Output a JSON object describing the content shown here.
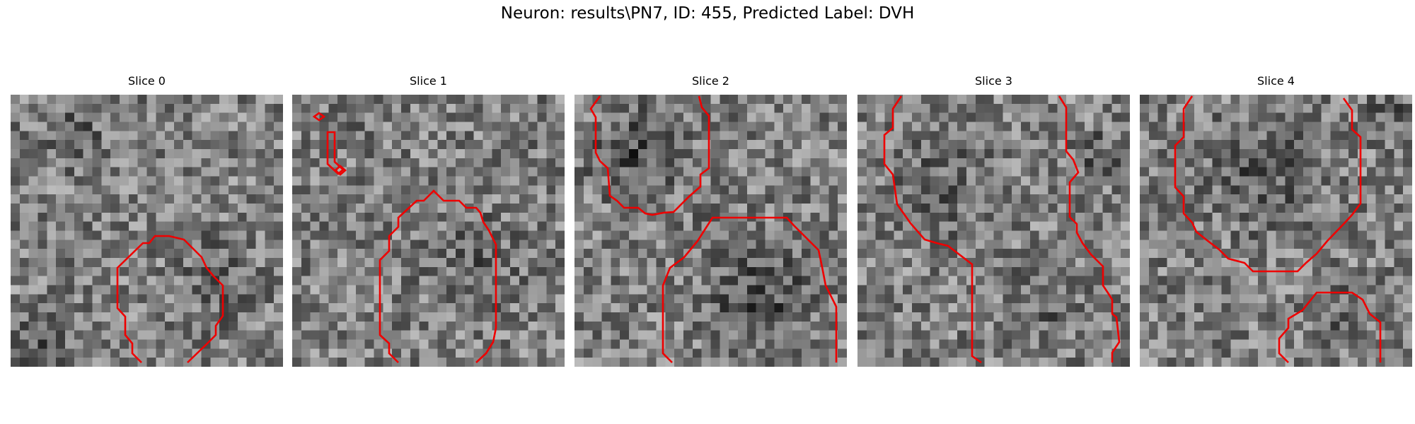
{
  "figure": {
    "title": "Neuron: results\\PN7, ID: 455, Predicted Label: DVH"
  },
  "colors": {
    "contour": "#ee0000",
    "background": "#ffffff"
  },
  "slices": [
    {
      "title": "Slice 0"
    },
    {
      "title": "Slice 1"
    },
    {
      "title": "Slice 2"
    },
    {
      "title": "Slice 3"
    },
    {
      "title": "Slice 4"
    }
  ]
}
